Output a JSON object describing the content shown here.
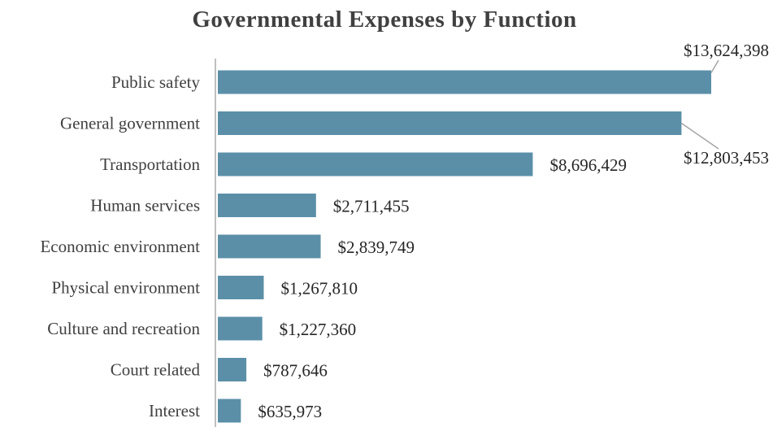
{
  "chart_data": {
    "type": "bar",
    "orientation": "horizontal",
    "title": "Governmental Expenses by Function",
    "xlabel": "",
    "ylabel": "",
    "grid": false,
    "legend": "none",
    "bar_color": "#5b8fa8",
    "categories": [
      "Public safety",
      "General government",
      "Transportation",
      "Human services",
      "Economic environment",
      "Physical environment",
      "Culture and recreation",
      "Court related",
      "Interest"
    ],
    "values": [
      13624398,
      12803453,
      8696429,
      2711455,
      2839749,
      1267810,
      1227360,
      787646,
      635973
    ],
    "value_labels": [
      "$13,624,398",
      "$12,803,453",
      "$8,696,429",
      "$2,711,455",
      "$2,839,749",
      "$1,267,810",
      "$1,227,360",
      "$787,646",
      "$635,973"
    ]
  }
}
